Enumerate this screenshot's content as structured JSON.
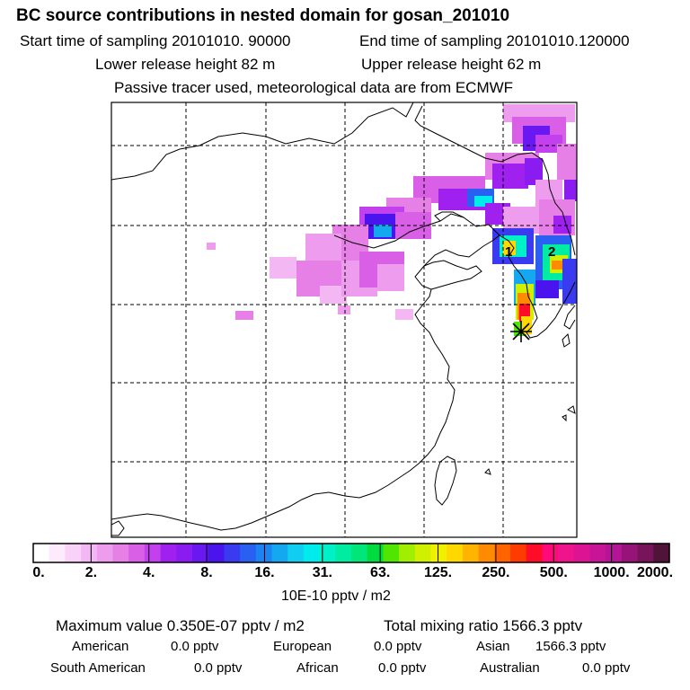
{
  "header": {
    "title": "BC  source contributions in nested domain for gosan_201010",
    "start_time": "Start time of sampling 20101010. 90000",
    "end_time": "End time of sampling 20101010.120000",
    "lower_release": "Lower release height   82 m",
    "upper_release": "Upper release height   62 m",
    "tracer_note": "Passive tracer used, meteorological data are from ECMWF"
  },
  "chart_data": {
    "type": "heatmap",
    "title": "BC  source contributions in nested domain for gosan_201010",
    "colorbar_unit": "10E-10 pptv / m2",
    "colorbar_labels": [
      "0.",
      "2.",
      "4.",
      "8.",
      "16.",
      "31.",
      "63.",
      "125.",
      "250.",
      "500.",
      "1000.",
      "2000."
    ],
    "colorbar_colors": [
      "#ffffff",
      "#fdeafd",
      "#f8d2f8",
      "#f3b8f3",
      "#ee9cee",
      "#e680e6",
      "#d85fe6",
      "#c340ef",
      "#a020f0",
      "#8a1cf2",
      "#6a18f2",
      "#4a14ef",
      "#3a3af0",
      "#2a60f2",
      "#1a84f2",
      "#14a8f0",
      "#10cef0",
      "#00ecec",
      "#00f0c8",
      "#00eca0",
      "#00e678",
      "#00dc40",
      "#50e600",
      "#a0ee00",
      "#d0f000",
      "#f0f000",
      "#ffd800",
      "#ffb400",
      "#ff8c00",
      "#ff6400",
      "#ff3c00",
      "#ff0c28",
      "#ff0a78",
      "#f0148c",
      "#dc1494",
      "#c81496",
      "#b41496",
      "#961478",
      "#78145a",
      "#501438"
    ],
    "markers": [
      {
        "label": "1",
        "lon": 126.5,
        "lat": 37.6
      },
      {
        "label": "2",
        "lon": 129.2,
        "lat": 37.5
      }
    ],
    "receptor": {
      "name": "gosan",
      "lon": 126.2,
      "lat": 33.3
    }
  },
  "stats": {
    "max_value": "Maximum value  0.350E-07 pptv / m2",
    "total_mixing": "Total mixing ratio     1566.3 pptv",
    "american_label": "American",
    "american_value": "0.0 pptv",
    "european_label": "European",
    "european_value": "0.0 pptv",
    "asian_label": "Asian",
    "asian_value": "1566.3 pptv",
    "south_american_label": "South American",
    "south_american_value": "0.0 pptv",
    "african_label": "African",
    "african_value": "0.0 pptv",
    "australian_label": "Australian",
    "australian_value": "0.0 pptv"
  }
}
